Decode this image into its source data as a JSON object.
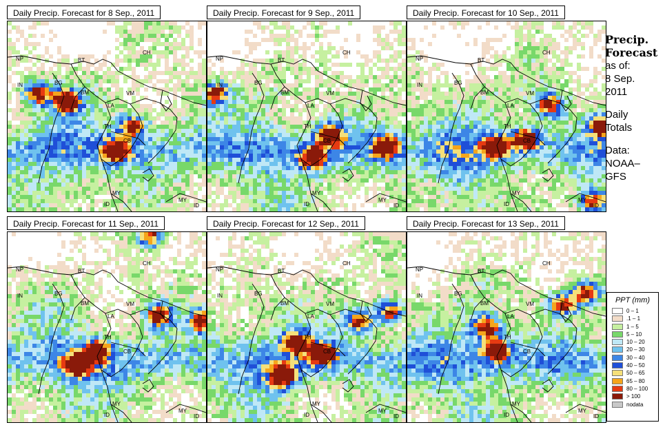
{
  "panels": [
    {
      "title": "Daily Precip. Forecast for  8 Sep., 2011",
      "seed": 11,
      "hot": [
        [
          0.63,
          0.55
        ],
        [
          0.3,
          0.42
        ],
        [
          0.15,
          0.38
        ],
        [
          0.55,
          0.68
        ]
      ]
    },
    {
      "title": "Daily Precip. Forecast for  9 Sep., 2011",
      "seed": 23,
      "hot": [
        [
          0.62,
          0.6
        ],
        [
          0.53,
          0.72
        ],
        [
          0.9,
          0.66
        ],
        [
          0.04,
          0.38
        ]
      ]
    },
    {
      "title": "Daily Precip. Forecast for  10 Sep., 2011",
      "seed": 37,
      "hot": [
        [
          0.45,
          0.66
        ],
        [
          0.6,
          0.62
        ],
        [
          0.72,
          0.44
        ],
        [
          0.98,
          0.55
        ],
        [
          0.94,
          0.95
        ]
      ]
    },
    {
      "title": "Daily Precip. Forecast for  11 Sep., 2011",
      "seed": 41,
      "hot": [
        [
          0.45,
          0.62
        ],
        [
          0.35,
          0.7
        ],
        [
          0.76,
          0.44
        ],
        [
          0.98,
          0.47
        ],
        [
          0.72,
          0.02
        ]
      ]
    },
    {
      "title": "Daily Precip. Forecast for  12 Sep., 2011",
      "seed": 53,
      "hot": [
        [
          0.77,
          0.47
        ],
        [
          0.92,
          0.42
        ],
        [
          0.45,
          0.58
        ],
        [
          0.38,
          0.76
        ],
        [
          0.58,
          0.64
        ]
      ]
    },
    {
      "title": "Daily Precip. Forecast for  13 Sep., 2011",
      "seed": 67,
      "hot": [
        [
          0.4,
          0.5
        ],
        [
          0.45,
          0.62
        ],
        [
          0.78,
          0.38
        ],
        [
          0.9,
          0.32
        ]
      ]
    }
  ],
  "region_labels": [
    "NP",
    "BT",
    "IN",
    "BG",
    "CH",
    "BM",
    "VM",
    "LA",
    "TH",
    "CB",
    "MY",
    "ID",
    "MY",
    "ID"
  ],
  "sidebar": {
    "title_line1": "Precip.",
    "title_line2": "Forecast",
    "asof_label": "as of:",
    "date_line1": "8 Sep.",
    "date_line2": "2011",
    "daily_line1": "Daily",
    "daily_line2": "Totals",
    "data_line1": "Data:",
    "data_line2": "NOAA–",
    "data_line3": "GFS"
  },
  "legend": {
    "title": "PPT (mm)",
    "items": [
      {
        "label": "0 – 1",
        "color": "#ffffff"
      },
      {
        "label": ".1 – 1",
        "color": "#f2dcc8"
      },
      {
        "label": "1 – 5",
        "color": "#c6f0a0"
      },
      {
        "label": "5 – 10",
        "color": "#78d86a"
      },
      {
        "label": "10 – 20",
        "color": "#bfe8f6"
      },
      {
        "label": "20 – 30",
        "color": "#6fc2ee"
      },
      {
        "label": "30 – 40",
        "color": "#3d86e6"
      },
      {
        "label": "40 – 50",
        "color": "#1f4fd8"
      },
      {
        "label": "50 – 65",
        "color": "#f5e07a"
      },
      {
        "label": "65 – 80",
        "color": "#f5a51c"
      },
      {
        "label": "80 – 100",
        "color": "#e63a12"
      },
      {
        "label": "> 100",
        "color": "#8a1a0a"
      },
      {
        "label": "nodata",
        "color": "#c8c8c8"
      }
    ]
  }
}
